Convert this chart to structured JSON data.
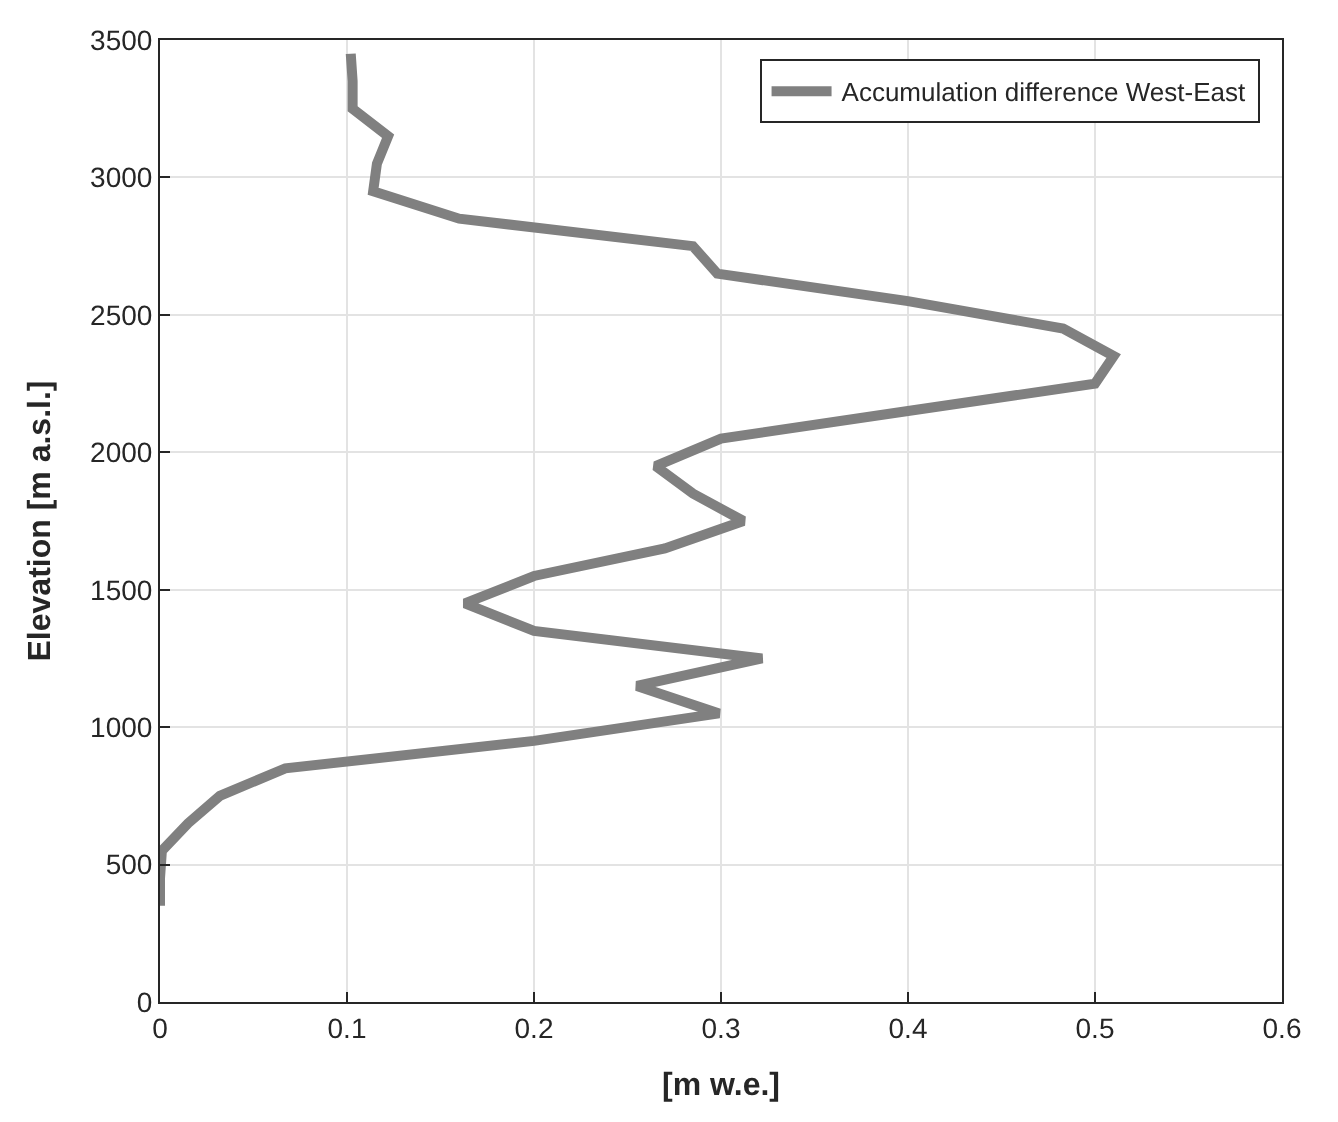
{
  "chart_data": {
    "type": "line",
    "xlabel": "[m w.e.]",
    "ylabel": "Elevation [m a.s.l.]",
    "series": [
      {
        "name": "Accumulation difference West-East",
        "color": "#808080",
        "x": [
          0.102,
          0.103,
          0.103,
          0.122,
          0.116,
          0.114,
          0.16,
          0.285,
          0.298,
          0.4,
          0.483,
          0.51,
          0.5,
          0.4,
          0.3,
          0.265,
          0.285,
          0.312,
          0.27,
          0.2,
          0.163,
          0.2,
          0.322,
          0.255,
          0.299,
          0.2,
          0.067,
          0.032,
          0.015,
          0.001,
          0,
          0
        ],
        "values": [
          3450,
          3350,
          3250,
          3150,
          3050,
          2950,
          2850,
          2750,
          2650,
          2550,
          2450,
          2350,
          2250,
          2150,
          2050,
          1950,
          1850,
          1750,
          1650,
          1550,
          1450,
          1350,
          1250,
          1150,
          1050,
          950,
          850,
          750,
          650,
          550,
          450,
          350
        ]
      }
    ],
    "xlim": [
      0,
      0.6
    ],
    "xticks": [
      0,
      0.1,
      0.2,
      0.3,
      0.4,
      0.5,
      0.6
    ],
    "ylim": [
      0,
      3500
    ],
    "yticks": [
      0,
      500,
      1000,
      1500,
      2000,
      2500,
      3000,
      3500
    ],
    "grid": true,
    "legend": "top right",
    "marker": "none",
    "line_style": "solid"
  }
}
